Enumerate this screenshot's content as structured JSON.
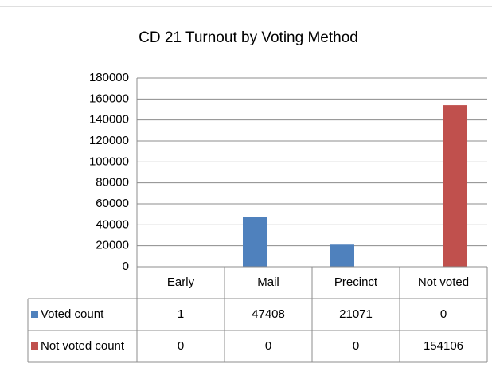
{
  "chart_data": {
    "type": "bar",
    "title": "CD 21 Turnout by Voting Method",
    "categories": [
      "Early",
      "Mail",
      "Precinct",
      "Not voted"
    ],
    "series": [
      {
        "name": "Voted count",
        "color": "#4f81bd",
        "values": [
          1,
          47408,
          21071,
          0
        ]
      },
      {
        "name": "Not voted count",
        "color": "#c0504d",
        "values": [
          0,
          0,
          0,
          154106
        ]
      }
    ],
    "ylim": [
      0,
      180000
    ],
    "yticks": [
      0,
      20000,
      40000,
      60000,
      80000,
      100000,
      120000,
      140000,
      160000,
      180000
    ],
    "grid": true,
    "data_table": true
  }
}
